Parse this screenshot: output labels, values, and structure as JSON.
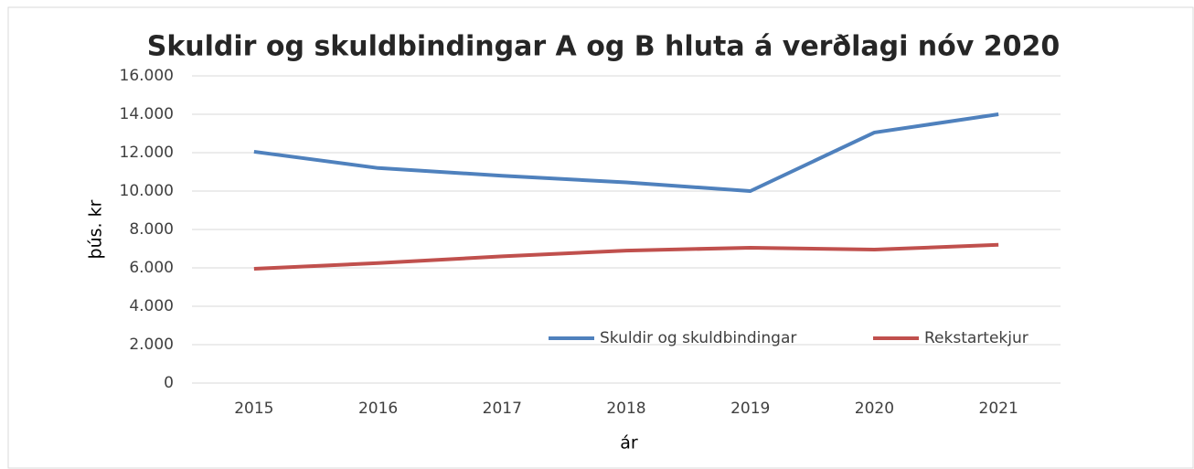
{
  "chart_data": {
    "type": "line",
    "title": "Skuldir og skuldbindingar A og B hluta á verðlagi nóv 2020",
    "x_label": "ár",
    "y_label": "þús. kr",
    "categories": [
      "2015",
      "2016",
      "2017",
      "2018",
      "2019",
      "2020",
      "2021"
    ],
    "series": [
      {
        "name": "Skuldir og skuldbindingar",
        "color": "#4f81bd",
        "values": [
          12050,
          11200,
          10800,
          10450,
          10000,
          13050,
          14000
        ]
      },
      {
        "name": "Rekstartekjur",
        "color": "#c0504d",
        "values": [
          5950,
          6250,
          6600,
          6900,
          7050,
          6950,
          7200
        ]
      }
    ],
    "ylim": [
      0,
      16000
    ],
    "yticks": [
      0,
      {
        "value": 2000,
        "label": "2.000"
      },
      {
        "value": 4000,
        "label": "4.000"
      },
      {
        "value": 6000,
        "label": "6.000"
      },
      {
        "value": 8000,
        "label": "8.000"
      },
      {
        "value": 10000,
        "label": "10.000"
      },
      {
        "value": 12000,
        "label": "12.000"
      },
      {
        "value": 14000,
        "label": "14.000"
      },
      {
        "value": 16000,
        "label": "16.000"
      }
    ],
    "grid": true,
    "legend": "bottom-right"
  }
}
